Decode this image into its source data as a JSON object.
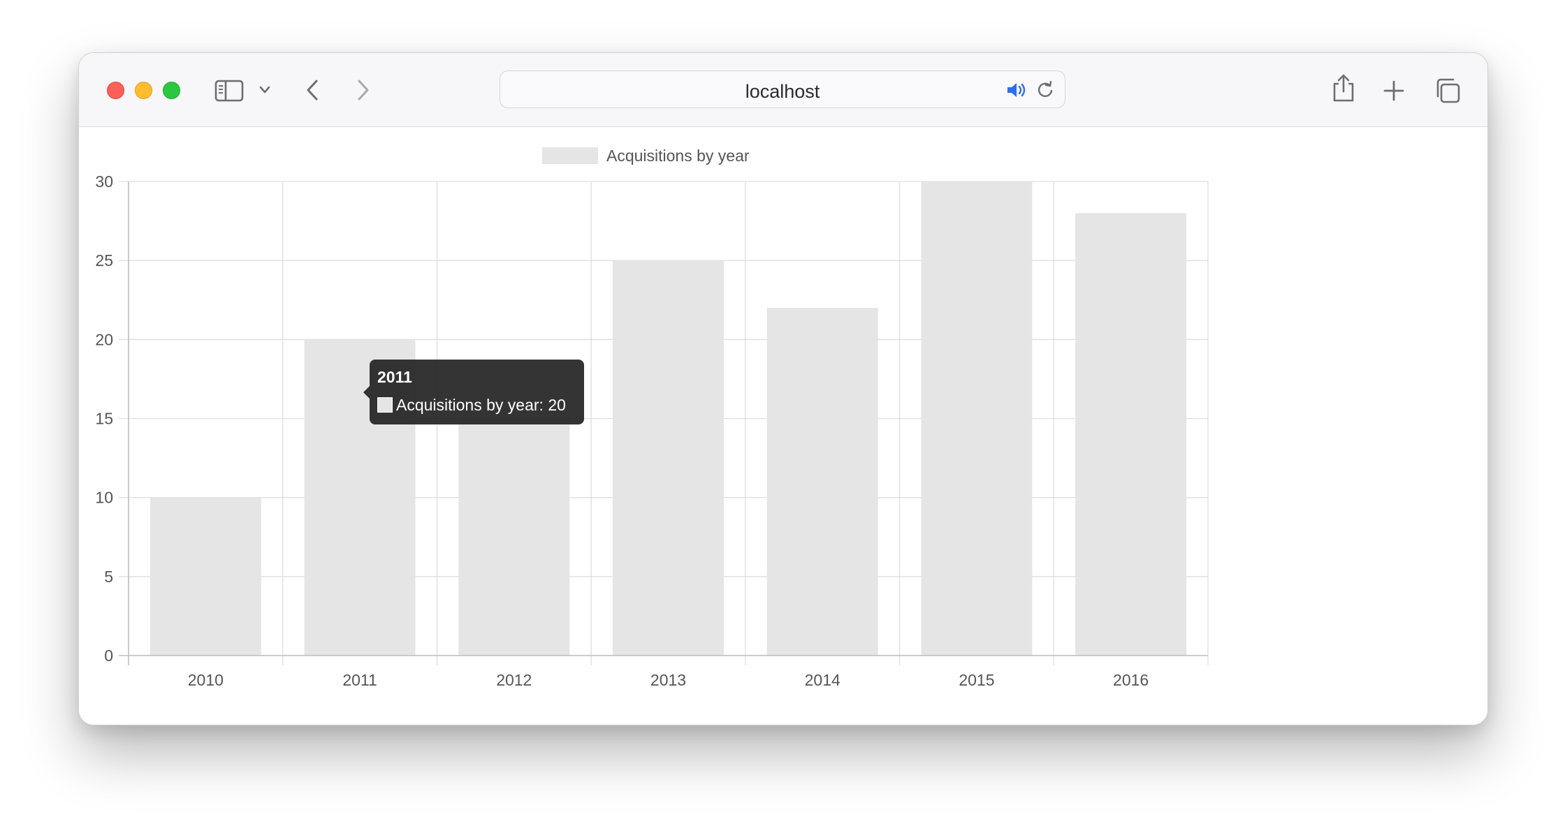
{
  "browser": {
    "url": "localhost",
    "icons": [
      "sidebar-icon",
      "chevron-down-icon",
      "back-icon",
      "forward-icon",
      "speaker-icon",
      "reload-icon",
      "share-icon",
      "plus-icon",
      "tabs-icon"
    ]
  },
  "chart_data": {
    "type": "bar",
    "categories": [
      "2010",
      "2011",
      "2012",
      "2013",
      "2014",
      "2015",
      "2016"
    ],
    "series": [
      {
        "name": "Acquisitions by year",
        "values": [
          10,
          20,
          15,
          25,
          22,
          30,
          28
        ],
        "color": "#e5e5e5"
      }
    ],
    "y_ticks": [
      "0",
      "5",
      "10",
      "15",
      "20",
      "25",
      "30"
    ],
    "ylim": [
      0,
      30
    ],
    "grid": true,
    "legend_position": "top-center"
  },
  "tooltip": {
    "title": "2011",
    "label": "Acquisitions by year: 20"
  }
}
